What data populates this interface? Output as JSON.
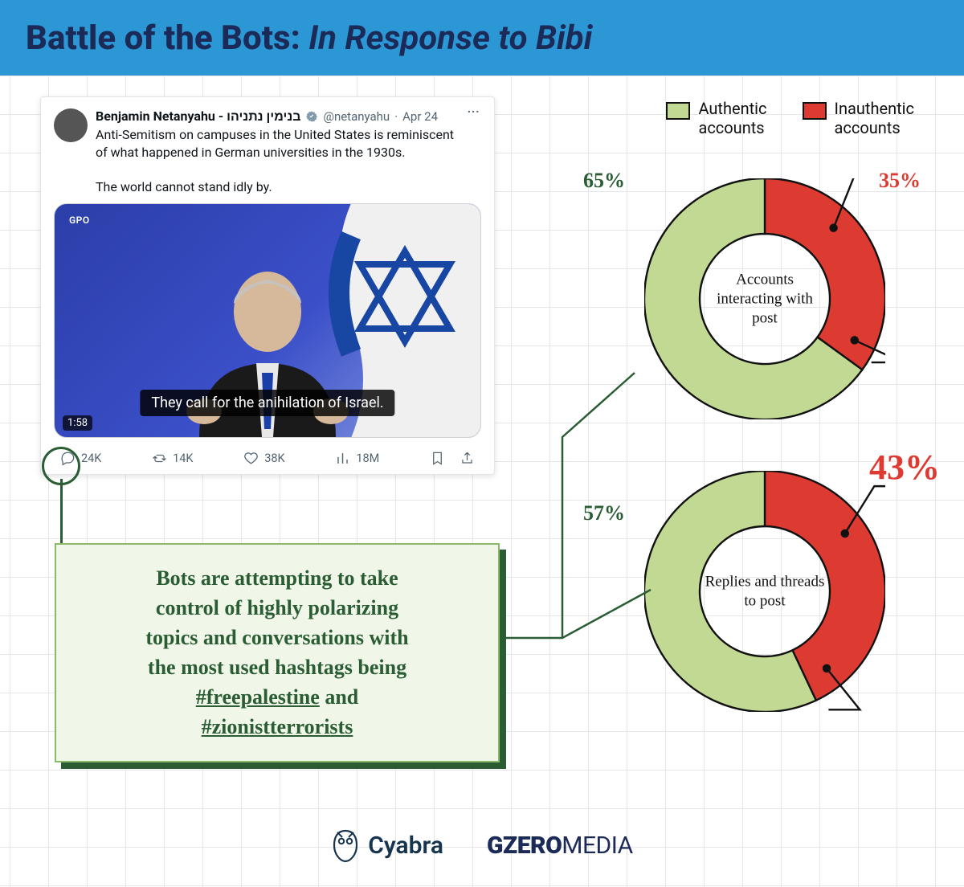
{
  "title": {
    "bold": "Battle of the Bots:",
    "italic": " In Response to Bibi"
  },
  "colors": {
    "authentic": "#c1d993",
    "inauthentic": "#dd3b32",
    "outline": "#111111",
    "headerBg": "#2b97d5",
    "primaryText": "#1b2a57",
    "accentGreen": "#2a5d33",
    "calloutBg": "#f0f6e8",
    "calloutBorder": "#8cb86a"
  },
  "tweet": {
    "author": "Benjamin Netanyahu - בנימין נתניהו",
    "handle": "@netanyahu",
    "date": "Apr 24",
    "body": "Anti-Semitism on campuses in the United States is reminiscent of what happened in German universities in the 1930s.\n\nThe world cannot stand idly by.",
    "gpo": "GPO",
    "caption": "They call for the anihilation of Israel.",
    "duration": "1:58",
    "replies": "24K",
    "retweets": "14K",
    "likes": "38K",
    "views": "18M"
  },
  "callout": {
    "line1": "Bots are attempting to take",
    "line2": "control of highly polarizing",
    "line3": "topics and conversations with",
    "line4": "the most used hashtags being",
    "hashtag1": "#freepalestine",
    "and": " and",
    "hashtag2": "#zionistterrorists"
  },
  "legend": {
    "authentic_l1": "Authentic",
    "authentic_l2": "accounts",
    "inauthentic_l1": "Inauthentic",
    "inauthentic_l2": "accounts"
  },
  "donut1": {
    "center": "Accounts interacting with post",
    "authentic_pct": 65,
    "inauthentic_pct": 35,
    "authentic_label": "65%",
    "inauthentic_label": "35%",
    "ring_inner": 54,
    "ring_outer": 100,
    "label_auth_color": "#2a5d33",
    "label_inauth_color": "#dd3b32",
    "label_auth_size": 26,
    "label_inauth_size": 26
  },
  "donut2": {
    "center": "Replies and threads to post",
    "authentic_pct": 57,
    "inauthentic_pct": 43,
    "authentic_label": "57%",
    "inauthentic_label": "43%",
    "ring_inner": 54,
    "ring_outer": 100,
    "label_auth_color": "#2a5d33",
    "label_inauth_color": "#dd3b32",
    "label_auth_size": 26,
    "label_inauth_size": 44
  },
  "footer": {
    "cyabra": "Cyabra",
    "gzero_bold": "GZERO",
    "gzero_light": "MEDIA"
  }
}
